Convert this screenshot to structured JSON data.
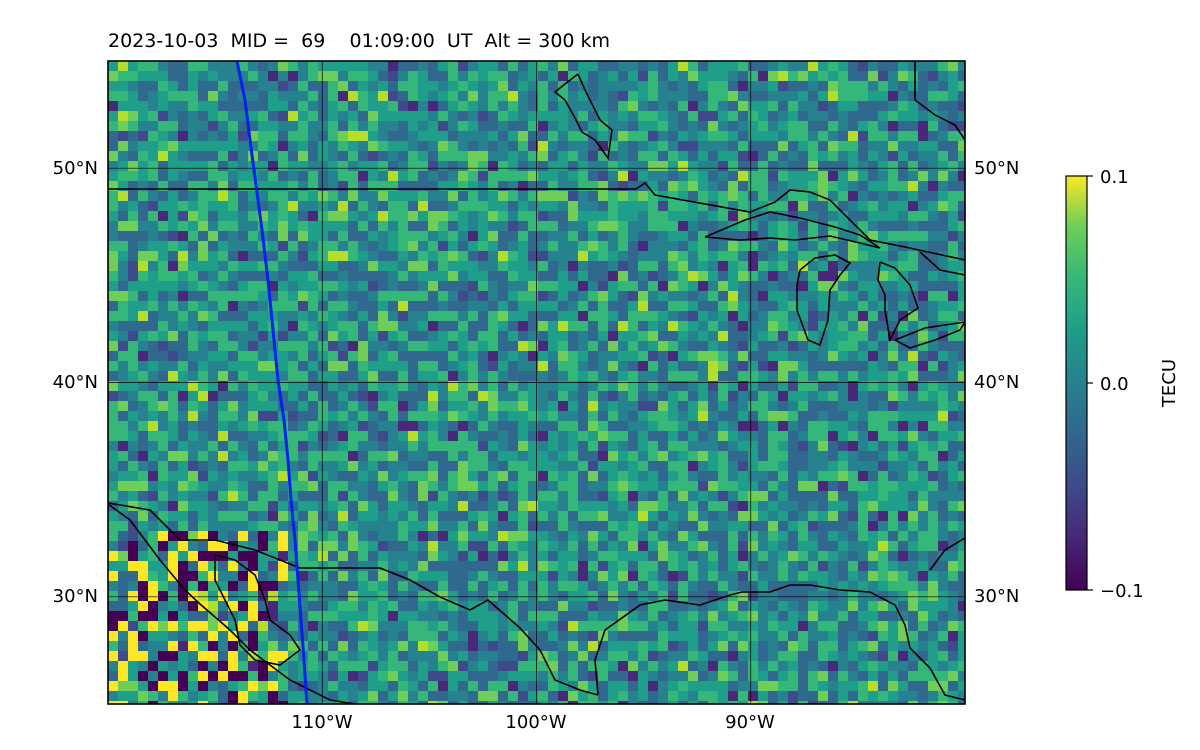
{
  "title": "2023-10-03  MID =  69    01:09:00  UT  Alt = 300 km",
  "map": {
    "lon_labels": [
      "110°W",
      "100°W",
      "90°W"
    ],
    "lat_labels": [
      "50°N",
      "40°N",
      "30°N"
    ],
    "lon_range": [
      -120,
      -80
    ],
    "lat_range": [
      25,
      55
    ],
    "gridlines": true,
    "track_color": "#0022ee",
    "coast_color": "#000000"
  },
  "colorbar": {
    "label": "TECU",
    "colormap": "viridis",
    "min": -0.1,
    "max": 0.1,
    "tick_labels": [
      "0.1",
      "0.0",
      "−0.1"
    ]
  }
}
